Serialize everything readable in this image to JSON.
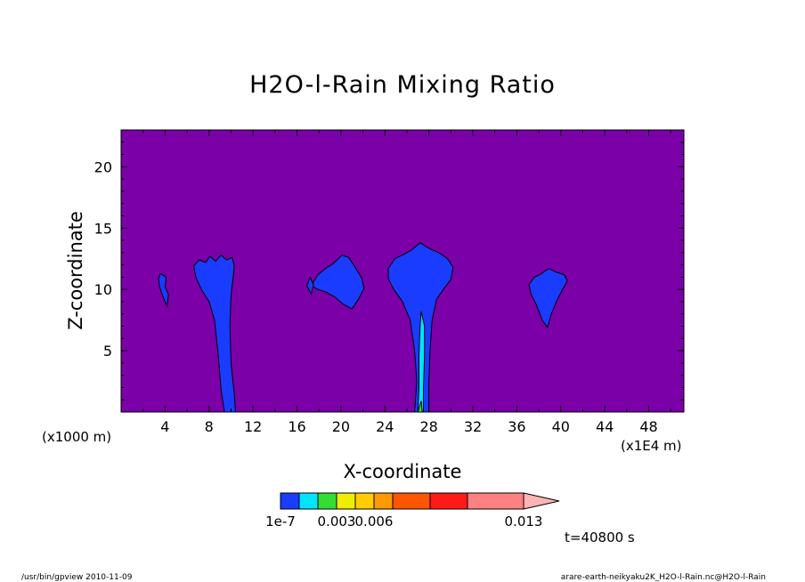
{
  "chart_data": {
    "type": "heatmap",
    "title": "H2O-l-Rain Mixing Ratio",
    "xlabel": "X-coordinate",
    "ylabel": "Z-coordinate",
    "x_unit_left": "(x1000 m)",
    "x_unit_right": "(x1E4 m)",
    "xlim": [
      0,
      51.2
    ],
    "ylim": [
      0,
      23
    ],
    "x_ticks": [
      4,
      8,
      12,
      16,
      20,
      24,
      28,
      32,
      36,
      40,
      44,
      48
    ],
    "y_ticks": [
      5,
      10,
      15,
      20
    ],
    "background_color": "#7b00a8",
    "colorbar": {
      "colors": [
        "#1a3cff",
        "#00e5ff",
        "#33dd33",
        "#eeee00",
        "#ffcc00",
        "#ff9900",
        "#ff5500",
        "#ff1a1a",
        "#ff8080",
        "#ffb4b4"
      ],
      "labels": [
        {
          "text": "1e-7",
          "index": 0
        },
        {
          "text": "0.003",
          "index": 2
        },
        {
          "text": "0.006",
          "index": 4
        },
        {
          "text": "0.013",
          "index": 8
        }
      ]
    },
    "cells": [
      {
        "pts": [
          [
            3.6,
            11.3
          ],
          [
            4.1,
            11.0
          ],
          [
            4.0,
            10.2
          ],
          [
            4.3,
            9.6
          ],
          [
            4.2,
            8.6
          ],
          [
            3.9,
            9.2
          ],
          [
            3.5,
            10.2
          ],
          [
            3.4,
            10.9
          ]
        ],
        "level": 0
      },
      {
        "pts": [
          [
            6.6,
            11.9
          ],
          [
            7.1,
            12.4
          ],
          [
            7.7,
            12.2
          ],
          [
            8.1,
            12.7
          ],
          [
            8.6,
            12.3
          ],
          [
            9.1,
            12.8
          ],
          [
            9.6,
            12.4
          ],
          [
            10.1,
            12.6
          ],
          [
            10.3,
            11.9
          ],
          [
            10.2,
            11.0
          ],
          [
            10.0,
            9.5
          ],
          [
            9.9,
            7.0
          ],
          [
            10.0,
            4.0
          ],
          [
            10.3,
            1.5
          ],
          [
            10.4,
            0.0
          ],
          [
            9.4,
            0.0
          ],
          [
            9.1,
            1.8
          ],
          [
            8.8,
            5.0
          ],
          [
            8.5,
            7.5
          ],
          [
            8.0,
            9.0
          ],
          [
            7.3,
            10.0
          ],
          [
            6.8,
            11.0
          ]
        ],
        "level": 0
      },
      {
        "pts": [
          [
            17.3,
            10.3
          ],
          [
            17.9,
            11.2
          ],
          [
            18.6,
            11.7
          ],
          [
            19.3,
            12.1
          ],
          [
            20.1,
            12.8
          ],
          [
            20.7,
            12.6
          ],
          [
            21.3,
            11.8
          ],
          [
            21.9,
            10.9
          ],
          [
            22.1,
            10.1
          ],
          [
            21.6,
            9.2
          ],
          [
            21.0,
            8.4
          ],
          [
            20.2,
            8.8
          ],
          [
            19.4,
            9.4
          ],
          [
            18.6,
            9.8
          ],
          [
            17.9,
            10.0
          ]
        ],
        "level": 0
      },
      {
        "pts": [
          [
            17.2,
            11.0
          ],
          [
            17.5,
            10.4
          ],
          [
            17.3,
            9.6
          ],
          [
            16.9,
            10.3
          ]
        ],
        "level": 0
      },
      {
        "pts": [
          [
            24.3,
            11.7
          ],
          [
            24.9,
            12.5
          ],
          [
            25.6,
            12.8
          ],
          [
            26.4,
            13.2
          ],
          [
            27.2,
            13.8
          ],
          [
            28.1,
            13.3
          ],
          [
            28.9,
            13.0
          ],
          [
            29.7,
            12.5
          ],
          [
            30.2,
            11.8
          ],
          [
            30.0,
            10.8
          ],
          [
            29.4,
            10.1
          ],
          [
            28.7,
            9.2
          ],
          [
            28.3,
            7.5
          ],
          [
            28.1,
            5.0
          ],
          [
            28.0,
            2.5
          ],
          [
            28.0,
            0.0
          ],
          [
            26.7,
            0.0
          ],
          [
            26.9,
            2.5
          ],
          [
            26.7,
            5.0
          ],
          [
            26.3,
            7.5
          ],
          [
            25.6,
            9.0
          ],
          [
            24.8,
            10.0
          ],
          [
            24.3,
            10.9
          ]
        ],
        "level": 0
      },
      {
        "pts": [
          [
            27.3,
            8.2
          ],
          [
            27.6,
            7.0
          ],
          [
            27.6,
            4.5
          ],
          [
            27.5,
            2.0
          ],
          [
            27.5,
            0.0
          ],
          [
            27.0,
            0.0
          ],
          [
            27.1,
            2.0
          ],
          [
            27.1,
            4.5
          ],
          [
            27.2,
            7.0
          ]
        ],
        "level": 1
      },
      {
        "pts": [
          [
            27.3,
            0.9
          ],
          [
            27.4,
            0.0
          ],
          [
            27.0,
            0.0
          ]
        ],
        "level": 2
      },
      {
        "pts": [
          [
            37.1,
            10.4
          ],
          [
            37.6,
            11.0
          ],
          [
            38.1,
            11.2
          ],
          [
            38.9,
            11.7
          ],
          [
            39.6,
            11.4
          ],
          [
            40.3,
            11.2
          ],
          [
            40.6,
            10.7
          ],
          [
            40.1,
            9.9
          ],
          [
            39.6,
            9.0
          ],
          [
            39.1,
            7.9
          ],
          [
            38.8,
            6.9
          ],
          [
            38.3,
            7.5
          ],
          [
            37.8,
            8.7
          ],
          [
            37.3,
            9.6
          ]
        ],
        "level": 0
      }
    ]
  },
  "annotations": {
    "time": "t=40800 s",
    "footer_left": "/usr/bin/gpview   2010-11-09",
    "footer_right": "arare-earth-neikyaku2K_H2O-l-Rain.nc@H2O-l-Rain"
  }
}
